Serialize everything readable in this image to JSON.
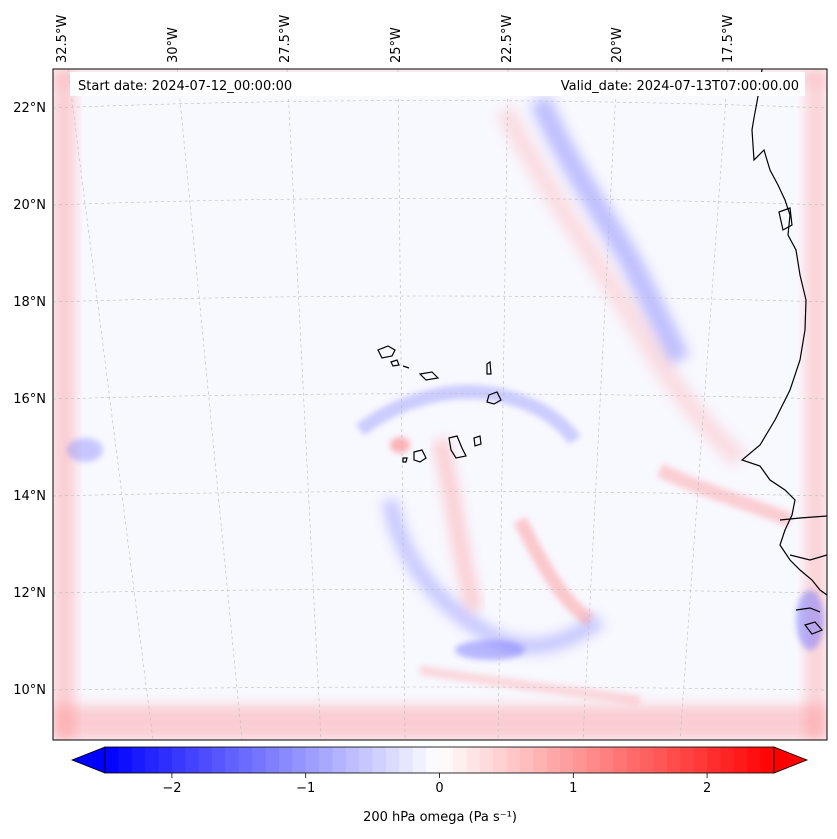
{
  "header": {
    "start_date": "Start date: 2024-07-12_00:00:00",
    "valid_date": "Valid_date: 2024-07-13T07:00:00.00"
  },
  "lon_labels": [
    "32.5°W",
    "30°W",
    "27.5°W",
    "25°W",
    "22.5°W",
    "20°W",
    "17.5°W"
  ],
  "lat_labels": [
    "22°N",
    "20°N",
    "18°N",
    "16°N",
    "14°N",
    "12°N",
    "10°N"
  ],
  "colorbar": {
    "ticks": [
      "−2",
      "−1",
      "0",
      "1",
      "2"
    ],
    "tick_values": [
      -2,
      -1,
      0,
      1,
      2
    ],
    "range": [
      -2.5,
      2.5
    ],
    "label": "200 hPa omega (Pa s⁻¹)",
    "colors": {
      "negative": "#0000ff",
      "zero": "#ffffff",
      "positive": "#ff0000"
    }
  },
  "map": {
    "ocean_color": "#f8f8ff",
    "coastline_color": "#000000",
    "features": [
      "Cape Verde islands",
      "West African coastline"
    ]
  }
}
